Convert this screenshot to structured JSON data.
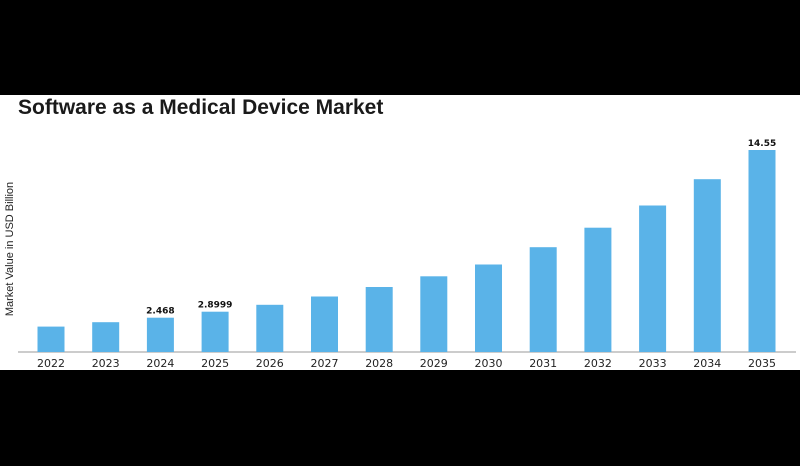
{
  "chart_data": {
    "type": "bar",
    "title": "Software as a Medical Device Market",
    "xlabel": "",
    "ylabel": "Market Value in USD Billion",
    "categories": [
      "2022",
      "2023",
      "2024",
      "2025",
      "2026",
      "2027",
      "2028",
      "2029",
      "2030",
      "2031",
      "2032",
      "2033",
      "2034",
      "2035"
    ],
    "values": [
      1.83,
      2.15,
      2.468,
      2.8999,
      3.4,
      4.0,
      4.68,
      5.45,
      6.3,
      7.55,
      8.95,
      10.55,
      12.45,
      14.55
    ],
    "data_labels": [
      {
        "index": 2,
        "text": "2.468"
      },
      {
        "index": 3,
        "text": "2.8999"
      },
      {
        "index": 13,
        "text": "14.55"
      }
    ],
    "ylim": [
      0,
      14.55
    ],
    "bar_color": "#5ab3e8",
    "grid": false,
    "legend": "none"
  }
}
